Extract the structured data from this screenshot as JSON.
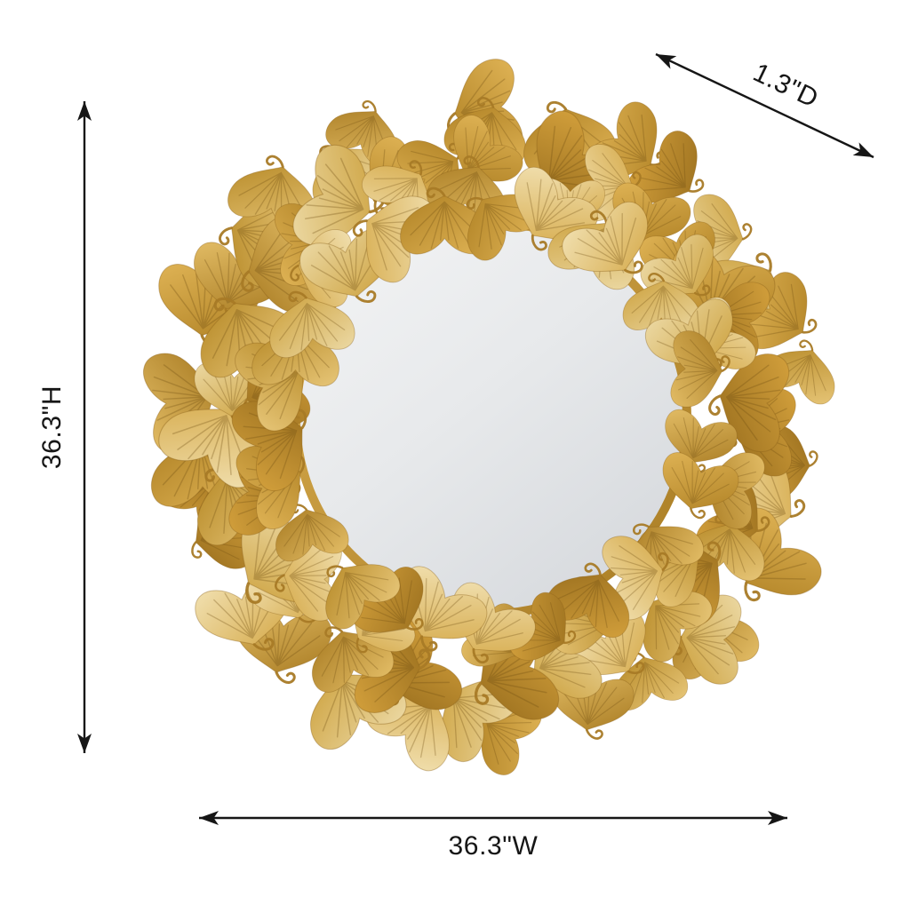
{
  "page": {
    "background": "#ffffff",
    "description": "Round gold butterfly ginkgo-leaf wall mirror shown with product dimension arrows"
  },
  "product": {
    "name": "Round gold butterfly ginkgo leaf wall mirror",
    "gold_palette": [
      [
        "#ecd9a4",
        "#cda23f"
      ],
      [
        "#e3bd66",
        "#aa7d24"
      ],
      [
        "#f1e0b0",
        "#d6ab4c"
      ],
      [
        "#d3a03c",
        "#9a6f1e"
      ],
      [
        "#e7c678",
        "#b78a28"
      ],
      [
        "#dfb355",
        "#b18326"
      ]
    ],
    "mirror_gradient": [
      "#f3f4f5",
      "#e7e9eb",
      "#d6d9dd"
    ],
    "frame_ring_gradient": [
      "#d9ad4f",
      "#a87c24"
    ]
  },
  "annotations": {
    "color": "#161616",
    "height": {
      "label": "36.3\"H"
    },
    "width": {
      "label": "36.3\"W"
    },
    "depth": {
      "label": "1.3\"D"
    }
  }
}
